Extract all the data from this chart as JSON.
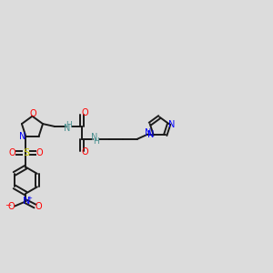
{
  "background_color": "#dcdcdc",
  "bond_color": "#1a1a1a",
  "bond_lw": 1.4,
  "fig_width": 3.0,
  "fig_height": 3.0,
  "dpi": 100,
  "xlim": [
    -1.8,
    8.5
  ],
  "ylim": [
    -1.2,
    6.0
  ],
  "colors": {
    "O": "#ff0000",
    "N": "#0000ff",
    "S": "#cccc00",
    "NH": "#4a9090",
    "black": "#1a1a1a"
  }
}
